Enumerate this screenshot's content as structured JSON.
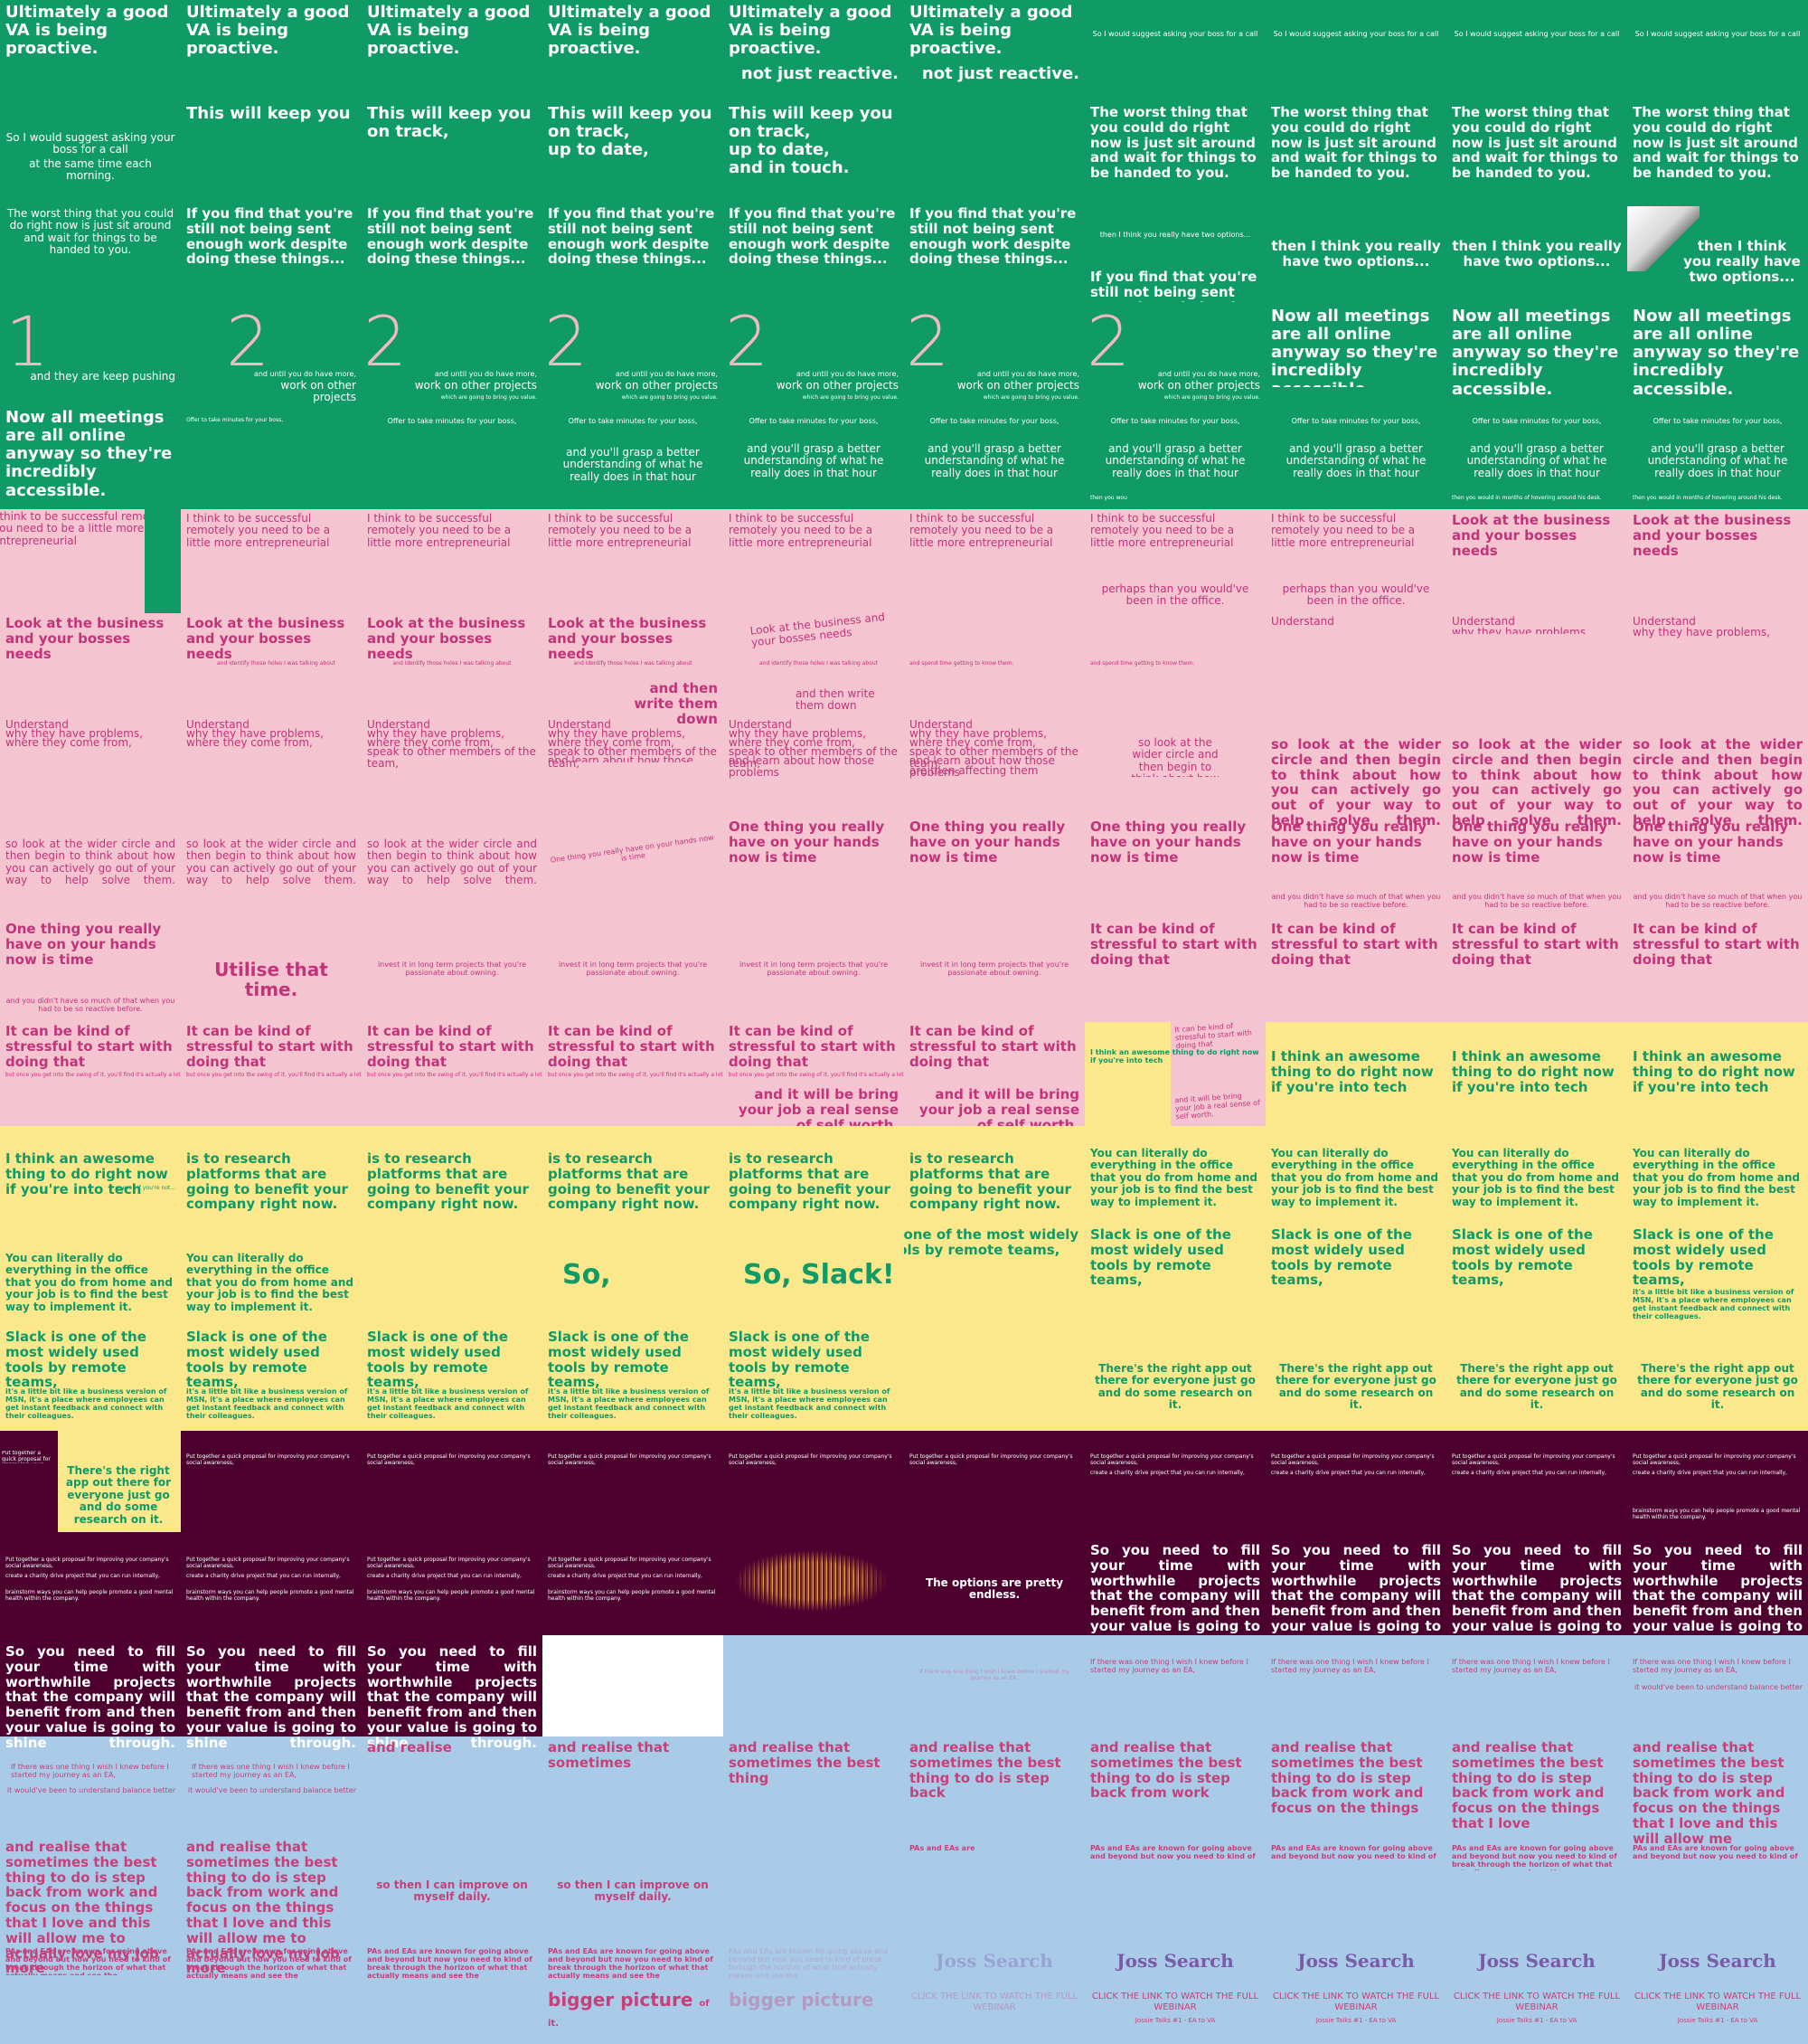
{
  "colors": {
    "green": "#109a65",
    "pink": "#f5c4d1",
    "yellow": "#fbe88c",
    "plum": "#4d0030",
    "blue": "#a9cbe8",
    "green_text": "#ffffff",
    "pink_text": "#c2337a",
    "yellow_text": "#109a65",
    "plum_text": "#ffffff",
    "blue_text": "#c7407a"
  },
  "green": {
    "va": "Ultimately a good VA is being proactive.",
    "not_just": "not just reactive.",
    "ask_boss": "So I would suggest asking your boss for a call",
    "same_time": "at the same time each morning.",
    "keep_you": "This will keep you",
    "on_track": "on track,",
    "up_to_date": "up to date,",
    "in_touch": "and in touch.",
    "worst": "The worst thing that you could do right now is just sit around and wait for things to be handed to you.",
    "still_not": "If you find that you're still not being sent enough work despite doing these things...",
    "two_options": "then I think you really have two options...",
    "one": "1",
    "two": "2",
    "keep_pushing": "and they are keep pushing",
    "until_more": "and until you do have more,",
    "other_projects": "work on other projects",
    "bring_value": "which are going to bring you value.",
    "offer_minutes": "Offer to take minutes for your boss,",
    "grasp": "and you'll grasp a better understanding of what he really does in that hour",
    "meetings": "Now all meetings are all online anyway so they're incredibly accessible.",
    "months": "then you would in months of hovering around his desk.",
    "then_you": "then you wou"
  },
  "pink": {
    "entrepreneurial": "I think to be successful remotely you need to be a little more entrepreneurial",
    "look": "Look at the business and your bosses needs",
    "identify": "and identify those holes I was talking about",
    "write_down": "and then write them down",
    "spend_time": "and spend time getting to know them.",
    "understand": "Understand",
    "why": "why they have problems,",
    "where": "where they come from,",
    "speak": "speak to other members of the team,",
    "learn": "and learn about how those problems",
    "affecting": "are then affecting them",
    "perhaps": "perhaps than you would've been in the office.",
    "wider": "so look at the wider circle and then begin to think about how you can actively go out of your way to help solve them.",
    "time": "One thing you really have on your hands now is time",
    "utilise": "Utilise that time.",
    "invest": "invest it in long term projects that you're passionate about owning.",
    "didnt": "and you didn't have so much of that when you had to be so reactive before.",
    "stressful": "It can be kind of stressful to start with doing that",
    "swing": "but once you get into the swing of it, you'll find it's actually a lot of fun",
    "self_worth": "and it will be bring your job a real sense of self worth."
  },
  "yellow": {
    "awesome": "I think an awesome thing to do right now if you're into tech",
    "or_even": "or even if you're not...",
    "research": "is to research platforms that are going to benefit your company right now.",
    "literally": "You can literally do everything in the office that you do from home and your job is to find the best way to implement it.",
    "so": "So,",
    "so_slack": "So, Slack!",
    "slack": "Slack is one of the most widely used tools by remote teams,",
    "msn": "it's a little bit like a business version of MSN, it's a place where employees can get instant feedback and connect with their colleagues.",
    "right_app": "There's the right app out there for everyone just go and do some research on it."
  },
  "plum": {
    "proposal": "Put together a quick proposal for improving your company's social awareness,",
    "charity": "create a charity drive project that you can run internally,",
    "brainstorm": "brainstorm ways you can help people promote a good mental health within the company.",
    "endless": "The options are pretty endless.",
    "fill": "So you need to fill your time with worthwhile projects that the company will benefit from and then your value is going to shine through."
  },
  "blue": {
    "wish": "If there was one thing I wish I knew before I started my journey as an EA,",
    "understand_balance": "it would've been to understand balance better",
    "realise": "and realise that sometimes the best thing to do is step back from work and focus on the things that I love and this will allow me to actually love my job more",
    "p_and_realise": "and realise",
    "p_sometimes": "and realise that sometimes",
    "p_best": "and realise that sometimes the best thing",
    "p_step": "and realise that sometimes the best thing to do is step back",
    "p_work": "and realise that sometimes the best thing to do is step back from work",
    "p_things": "and realise that sometimes the best thing to do is step back from work and focus on the things",
    "p_love": "and realise that sometimes the best thing to do is step back from work and focus on the things that I love",
    "p_allow": "and realise that sometimes the best thing to do is step back from work and focus on the things that I love and this will allow me",
    "improve": "so then I can improve on myself daily.",
    "pas_eas": "PAs and EAs",
    "pas_are": "PAs and EAs are",
    "pas_known": "PAs and EAs are known for going above and beyond but now you need to kind of break through the horizon of what that actually means and see the",
    "bigger": "bigger picture",
    "of_it": "of it.",
    "logo": "Joss Search",
    "click": "CLICK THE LINK TO WATCH THE FULL WEBINAR",
    "talks": "Jossie Talks #1 - EA to VA"
  }
}
